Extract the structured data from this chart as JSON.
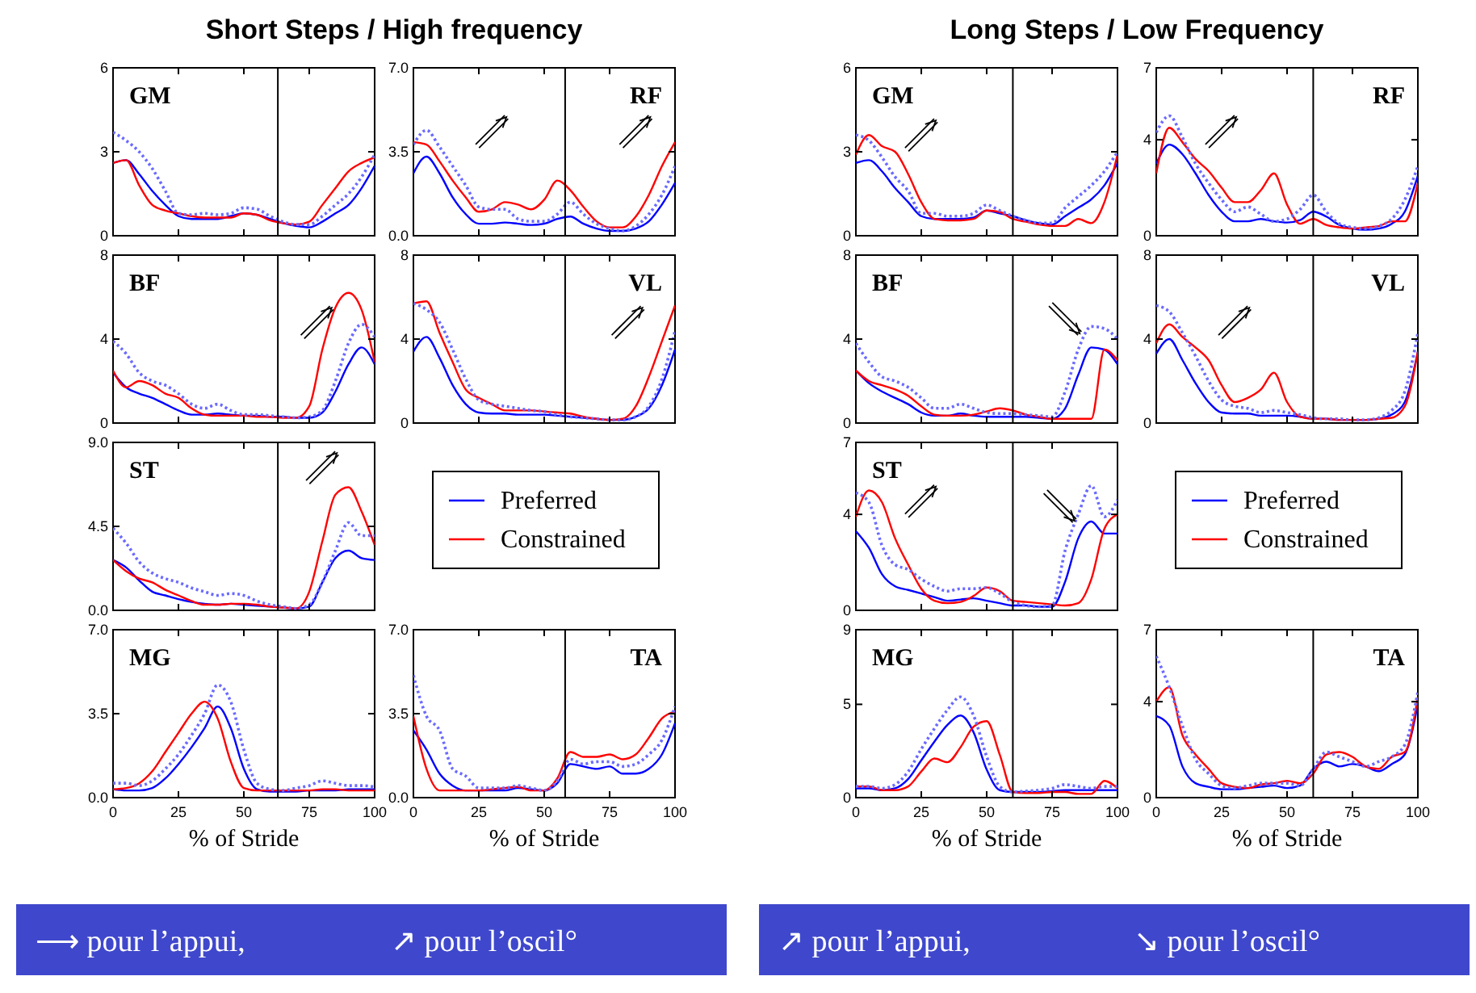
{
  "chart_data": [
    {
      "type": "line",
      "title": "GM",
      "annotations": [
        "Short Steps / High frequency"
      ],
      "x": [
        0,
        5,
        10,
        15,
        20,
        25,
        30,
        35,
        40,
        45,
        50,
        55,
        60,
        65,
        70,
        75,
        80,
        85,
        90,
        95,
        100
      ],
      "xlim": [
        0,
        100
      ],
      "ylim": [
        0,
        6
      ],
      "xticks": [
        {
          "value": 0,
          "label": null
        },
        {
          "value": 25,
          "label": null
        },
        {
          "value": 50,
          "label": null
        },
        {
          "value": 75,
          "label": null
        },
        {
          "value": 100,
          "label": null
        }
      ],
      "yticks": [
        0,
        3,
        6
      ],
      "tick_labels": "y",
      "ref_lines": [
        {
          "axis": "x",
          "value": 63
        }
      ],
      "series": [
        {
          "color": "#0000ff",
          "line_style": "solid",
          "values": [
            2.6,
            2.7,
            2.2,
            1.6,
            1.1,
            0.7,
            0.6,
            0.6,
            0.6,
            0.7,
            0.8,
            0.75,
            0.6,
            0.45,
            0.35,
            0.3,
            0.5,
            0.8,
            1.1,
            1.7,
            2.5
          ]
        },
        {
          "color": "#ff0000",
          "line_style": "solid",
          "values": [
            2.6,
            2.7,
            1.8,
            1.1,
            0.9,
            0.8,
            0.7,
            0.65,
            0.65,
            0.65,
            0.8,
            0.75,
            0.55,
            0.45,
            0.4,
            0.5,
            1.1,
            1.7,
            2.3,
            2.6,
            2.8
          ]
        },
        {
          "color": "#6a6aff",
          "line_style": "dotted",
          "values": [
            3.7,
            3.4,
            3.0,
            2.4,
            1.6,
            0.8,
            0.75,
            0.8,
            0.75,
            0.8,
            1.0,
            0.95,
            0.7,
            0.5,
            0.4,
            0.4,
            0.7,
            1.1,
            1.5,
            2.1,
            2.9
          ]
        }
      ]
    },
    {
      "type": "line",
      "title": "RF",
      "x": [
        0,
        5,
        10,
        15,
        20,
        25,
        30,
        35,
        40,
        45,
        50,
        55,
        60,
        65,
        70,
        75,
        80,
        85,
        90,
        95,
        100
      ],
      "xlim": [
        0,
        100
      ],
      "ylim": [
        0,
        7
      ],
      "xticks": [
        {
          "value": 0,
          "label": null
        },
        {
          "value": 25,
          "label": null
        },
        {
          "value": 50,
          "label": null
        },
        {
          "value": 75,
          "label": null
        },
        {
          "value": 100,
          "label": null
        }
      ],
      "yticks": [
        {
          "value": 0,
          "label": "0.0"
        },
        3.5,
        {
          "value": 7,
          "label": "7.0"
        }
      ],
      "tick_labels": "y",
      "ref_lines": [
        {
          "axis": "x",
          "value": 58
        }
      ],
      "series": [
        {
          "color": "#0000ff",
          "line_style": "solid",
          "values": [
            2.6,
            3.3,
            2.6,
            1.6,
            0.9,
            0.5,
            0.5,
            0.55,
            0.5,
            0.45,
            0.5,
            0.7,
            0.8,
            0.5,
            0.3,
            0.2,
            0.2,
            0.3,
            0.6,
            1.3,
            2.2
          ]
        },
        {
          "color": "#ff0000",
          "line_style": "solid",
          "values": [
            3.9,
            3.8,
            3.1,
            2.3,
            1.6,
            1.0,
            1.1,
            1.4,
            1.3,
            1.1,
            1.5,
            2.3,
            1.9,
            1.2,
            0.6,
            0.35,
            0.35,
            0.8,
            1.7,
            2.9,
            3.9
          ]
        },
        {
          "color": "#6a6aff",
          "line_style": "dotted",
          "values": [
            3.8,
            4.4,
            3.7,
            2.9,
            2.1,
            1.2,
            1.1,
            1.1,
            0.7,
            0.6,
            0.6,
            0.9,
            1.4,
            0.9,
            0.5,
            0.3,
            0.2,
            0.4,
            0.9,
            1.7,
            2.9
          ]
        }
      ]
    },
    {
      "type": "line",
      "title": "BF",
      "x": [
        0,
        5,
        10,
        15,
        20,
        25,
        30,
        35,
        40,
        45,
        50,
        55,
        60,
        65,
        70,
        75,
        80,
        85,
        90,
        95,
        100
      ],
      "xlim": [
        0,
        100
      ],
      "ylim": [
        0,
        8
      ],
      "xticks": [
        {
          "value": 0,
          "label": null
        },
        {
          "value": 25,
          "label": null
        },
        {
          "value": 50,
          "label": null
        },
        {
          "value": 75,
          "label": null
        },
        {
          "value": 100,
          "label": null
        }
      ],
      "yticks": [
        0,
        4,
        8
      ],
      "tick_labels": "y",
      "ref_lines": [
        {
          "axis": "x",
          "value": 63
        }
      ],
      "series": [
        {
          "color": "#0000ff",
          "line_style": "solid",
          "values": [
            2.4,
            1.7,
            1.4,
            1.2,
            0.9,
            0.6,
            0.4,
            0.4,
            0.45,
            0.4,
            0.35,
            0.35,
            0.3,
            0.3,
            0.25,
            0.25,
            0.5,
            1.5,
            2.8,
            3.6,
            2.8
          ]
        },
        {
          "color": "#ff0000",
          "line_style": "solid",
          "values": [
            2.5,
            1.7,
            2.0,
            1.8,
            1.4,
            1.2,
            0.7,
            0.4,
            0.35,
            0.35,
            0.35,
            0.3,
            0.3,
            0.25,
            0.25,
            0.8,
            3.5,
            5.5,
            6.2,
            5.4,
            2.9
          ]
        },
        {
          "color": "#6a6aff",
          "line_style": "dotted",
          "values": [
            3.9,
            3.3,
            2.4,
            2.0,
            1.8,
            1.4,
            0.9,
            0.7,
            0.9,
            0.6,
            0.4,
            0.4,
            0.35,
            0.3,
            0.25,
            0.3,
            0.6,
            2.0,
            3.8,
            4.7,
            4.1
          ]
        }
      ]
    },
    {
      "type": "line",
      "title": "VL",
      "x": [
        0,
        5,
        10,
        15,
        20,
        25,
        30,
        35,
        40,
        45,
        50,
        55,
        60,
        65,
        70,
        75,
        80,
        85,
        90,
        95,
        100
      ],
      "xlim": [
        0,
        100
      ],
      "ylim": [
        0,
        8
      ],
      "xticks": [
        {
          "value": 0,
          "label": null
        },
        {
          "value": 25,
          "label": null
        },
        {
          "value": 50,
          "label": null
        },
        {
          "value": 75,
          "label": null
        },
        {
          "value": 100,
          "label": null
        }
      ],
      "yticks": [
        0,
        4,
        8
      ],
      "tick_labels": "y",
      "ref_lines": [
        {
          "axis": "x",
          "value": 58
        }
      ],
      "series": [
        {
          "color": "#0000ff",
          "line_style": "solid",
          "values": [
            3.4,
            4.1,
            3.1,
            1.8,
            0.9,
            0.5,
            0.45,
            0.45,
            0.4,
            0.4,
            0.4,
            0.35,
            0.3,
            0.25,
            0.2,
            0.15,
            0.15,
            0.3,
            0.7,
            1.8,
            3.5
          ]
        },
        {
          "color": "#ff0000",
          "line_style": "solid",
          "values": [
            5.7,
            5.8,
            4.3,
            2.9,
            1.6,
            1.2,
            0.9,
            0.6,
            0.6,
            0.6,
            0.55,
            0.5,
            0.45,
            0.3,
            0.2,
            0.15,
            0.2,
            0.8,
            2.2,
            3.9,
            5.6
          ]
        },
        {
          "color": "#6a6aff",
          "line_style": "dotted",
          "values": [
            5.7,
            5.4,
            4.8,
            3.5,
            2.1,
            1.1,
            0.9,
            0.8,
            0.7,
            0.6,
            0.55,
            0.4,
            0.3,
            0.25,
            0.2,
            0.15,
            0.15,
            0.3,
            0.8,
            2.1,
            4.4
          ]
        }
      ]
    },
    {
      "type": "line",
      "title": "ST",
      "legend": "right",
      "x": [
        0,
        5,
        10,
        15,
        20,
        25,
        30,
        35,
        40,
        45,
        50,
        55,
        60,
        65,
        70,
        75,
        80,
        85,
        90,
        95,
        100
      ],
      "xlim": [
        0,
        100
      ],
      "ylim": [
        0,
        9
      ],
      "xticks": [
        {
          "value": 0,
          "label": null
        },
        {
          "value": 25,
          "label": null
        },
        {
          "value": 50,
          "label": null
        },
        {
          "value": 75,
          "label": null
        },
        {
          "value": 100,
          "label": null
        }
      ],
      "yticks": [
        {
          "value": 0,
          "label": "0.0"
        },
        4.5,
        {
          "value": 9,
          "label": "9.0"
        }
      ],
      "tick_labels": "y",
      "ref_lines": [
        {
          "axis": "x",
          "value": 63
        }
      ],
      "series": [
        {
          "name": "Preferred",
          "color": "#0000ff",
          "line_style": "solid",
          "values": [
            2.7,
            2.3,
            1.6,
            1.0,
            0.8,
            0.6,
            0.45,
            0.35,
            0.3,
            0.35,
            0.3,
            0.25,
            0.2,
            0.15,
            0.1,
            0.2,
            1.5,
            2.8,
            3.2,
            2.8,
            2.7
          ]
        },
        {
          "name": "Constrained",
          "color": "#ff0000",
          "line_style": "solid",
          "values": [
            2.7,
            2.1,
            1.7,
            1.5,
            1.1,
            0.8,
            0.5,
            0.3,
            0.3,
            0.35,
            0.35,
            0.3,
            0.2,
            0.15,
            0.1,
            1.0,
            3.7,
            6.2,
            6.6,
            5.3,
            3.5
          ]
        },
        {
          "color": "#6a6aff",
          "line_style": "dotted",
          "values": [
            4.4,
            3.6,
            2.6,
            2.0,
            1.7,
            1.5,
            1.2,
            1.0,
            0.8,
            0.9,
            0.8,
            0.5,
            0.3,
            0.2,
            0.1,
            0.3,
            1.5,
            3.2,
            4.7,
            4.0,
            4.0
          ]
        }
      ]
    },
    {
      "type": "line",
      "title": "MG",
      "xlabel": "% of Stride",
      "annotations": [
        "⟶ pour l’appui,",
        "↗ pour l’oscil°"
      ],
      "x": [
        0,
        5,
        10,
        15,
        20,
        25,
        30,
        35,
        40,
        45,
        50,
        55,
        60,
        65,
        70,
        75,
        80,
        85,
        90,
        95,
        100
      ],
      "xlim": [
        0,
        100
      ],
      "ylim": [
        0,
        7
      ],
      "xticks": [
        0,
        25,
        50,
        75,
        100
      ],
      "yticks": [
        {
          "value": 0,
          "label": "0.0"
        },
        3.5,
        {
          "value": 7,
          "label": "7.0"
        }
      ],
      "ref_lines": [
        {
          "axis": "x",
          "value": 63
        }
      ],
      "series": [
        {
          "color": "#0000ff",
          "line_style": "solid",
          "values": [
            0.35,
            0.3,
            0.3,
            0.4,
            0.8,
            1.4,
            2.1,
            2.9,
            3.8,
            2.9,
            1.2,
            0.35,
            0.25,
            0.25,
            0.25,
            0.3,
            0.3,
            0.3,
            0.35,
            0.35,
            0.35
          ]
        },
        {
          "color": "#ff0000",
          "line_style": "solid",
          "values": [
            0.35,
            0.4,
            0.6,
            1.1,
            1.9,
            2.7,
            3.5,
            4.0,
            3.3,
            1.5,
            0.4,
            0.3,
            0.3,
            0.3,
            0.3,
            0.3,
            0.35,
            0.35,
            0.3,
            0.3,
            0.3
          ]
        },
        {
          "color": "#6a6aff",
          "line_style": "dotted",
          "values": [
            0.6,
            0.6,
            0.5,
            0.7,
            1.2,
            1.8,
            2.6,
            3.5,
            4.7,
            4.0,
            2.0,
            0.6,
            0.35,
            0.3,
            0.4,
            0.5,
            0.7,
            0.6,
            0.5,
            0.5,
            0.45
          ]
        }
      ]
    },
    {
      "type": "line",
      "title": "TA",
      "xlabel": "% of Stride",
      "x": [
        0,
        5,
        10,
        15,
        20,
        25,
        30,
        35,
        40,
        45,
        50,
        55,
        60,
        65,
        70,
        75,
        80,
        85,
        90,
        95,
        100
      ],
      "xlim": [
        0,
        100
      ],
      "ylim": [
        0,
        7
      ],
      "xticks": [
        0,
        25,
        50,
        75,
        100
      ],
      "yticks": [
        {
          "value": 0,
          "label": "0.0"
        },
        3.5,
        {
          "value": 7,
          "label": "7.0"
        }
      ],
      "ref_lines": [
        {
          "axis": "x",
          "value": 58
        }
      ],
      "series": [
        {
          "color": "#0000ff",
          "line_style": "solid",
          "values": [
            2.8,
            2.0,
            1.0,
            0.5,
            0.3,
            0.3,
            0.3,
            0.3,
            0.4,
            0.35,
            0.3,
            0.6,
            1.4,
            1.3,
            1.2,
            1.3,
            1.0,
            1.0,
            1.2,
            1.8,
            3.1
          ]
        },
        {
          "color": "#ff0000",
          "line_style": "solid",
          "values": [
            3.4,
            1.2,
            0.3,
            0.3,
            0.3,
            0.3,
            0.35,
            0.4,
            0.45,
            0.3,
            0.3,
            0.8,
            1.9,
            1.7,
            1.7,
            1.8,
            1.6,
            1.8,
            2.5,
            3.3,
            3.6
          ]
        },
        {
          "color": "#6a6aff",
          "line_style": "dotted",
          "values": [
            5.1,
            3.4,
            2.8,
            1.2,
            0.9,
            0.4,
            0.4,
            0.4,
            0.5,
            0.4,
            0.3,
            0.7,
            1.6,
            1.4,
            1.5,
            1.5,
            1.3,
            1.4,
            1.8,
            2.4,
            3.8
          ]
        }
      ]
    },
    {
      "type": "line",
      "title": "GM",
      "annotations": [
        "Long Steps / Low Frequency"
      ],
      "x": [
        0,
        5,
        10,
        15,
        20,
        25,
        30,
        35,
        40,
        45,
        50,
        55,
        60,
        65,
        70,
        75,
        80,
        85,
        90,
        95,
        100
      ],
      "xlim": [
        0,
        100
      ],
      "ylim": [
        0,
        6
      ],
      "xticks": [
        {
          "value": 0,
          "label": null
        },
        {
          "value": 25,
          "label": null
        },
        {
          "value": 50,
          "label": null
        },
        {
          "value": 75,
          "label": null
        },
        {
          "value": 100,
          "label": null
        }
      ],
      "yticks": [
        0,
        3,
        6
      ],
      "tick_labels": "y",
      "ref_lines": [
        {
          "axis": "x",
          "value": 60
        }
      ],
      "series": [
        {
          "color": "#0000ff",
          "line_style": "solid",
          "values": [
            2.6,
            2.7,
            2.3,
            1.7,
            1.2,
            0.7,
            0.6,
            0.6,
            0.6,
            0.65,
            0.9,
            0.8,
            0.7,
            0.55,
            0.45,
            0.4,
            0.7,
            1.0,
            1.3,
            1.8,
            2.6
          ]
        },
        {
          "color": "#ff0000",
          "line_style": "solid",
          "values": [
            2.9,
            3.6,
            3.2,
            3.0,
            2.2,
            1.2,
            0.6,
            0.55,
            0.55,
            0.6,
            0.9,
            0.85,
            0.6,
            0.5,
            0.4,
            0.35,
            0.35,
            0.6,
            0.45,
            1.2,
            2.9
          ]
        },
        {
          "color": "#6a6aff",
          "line_style": "dotted",
          "values": [
            3.6,
            3.4,
            2.8,
            2.1,
            1.6,
            0.8,
            0.8,
            0.7,
            0.7,
            0.8,
            1.1,
            0.9,
            0.7,
            0.55,
            0.45,
            0.45,
            1.0,
            1.4,
            1.8,
            2.3,
            3.0
          ]
        }
      ]
    },
    {
      "type": "line",
      "title": "RF",
      "x": [
        0,
        5,
        10,
        15,
        20,
        25,
        30,
        35,
        40,
        45,
        50,
        55,
        60,
        65,
        70,
        75,
        80,
        85,
        90,
        95,
        100
      ],
      "xlim": [
        0,
        100
      ],
      "ylim": [
        0,
        7
      ],
      "xticks": [
        {
          "value": 0,
          "label": null
        },
        {
          "value": 25,
          "label": null
        },
        {
          "value": 50,
          "label": null
        },
        {
          "value": 75,
          "label": null
        },
        {
          "value": 100,
          "label": null
        }
      ],
      "yticks": [
        0,
        4,
        7
      ],
      "tick_labels": "y",
      "ref_lines": [
        {
          "axis": "x",
          "value": 60
        }
      ],
      "series": [
        {
          "color": "#0000ff",
          "line_style": "solid",
          "values": [
            3.0,
            3.8,
            3.4,
            2.6,
            1.7,
            1.0,
            0.6,
            0.6,
            0.7,
            0.6,
            0.55,
            0.65,
            1.0,
            0.8,
            0.45,
            0.3,
            0.25,
            0.3,
            0.5,
            1.0,
            2.5
          ]
        },
        {
          "color": "#ff0000",
          "line_style": "solid",
          "values": [
            2.6,
            4.5,
            3.9,
            3.2,
            2.7,
            2.0,
            1.4,
            1.4,
            1.9,
            2.6,
            1.3,
            0.5,
            0.7,
            0.45,
            0.35,
            0.3,
            0.35,
            0.4,
            0.6,
            0.6,
            2.2
          ]
        },
        {
          "color": "#6a6aff",
          "line_style": "dotted",
          "values": [
            4.3,
            5.0,
            4.1,
            3.0,
            2.2,
            1.5,
            1.0,
            1.2,
            0.9,
            0.6,
            0.7,
            1.1,
            1.7,
            1.0,
            0.5,
            0.35,
            0.3,
            0.4,
            0.7,
            1.5,
            2.9
          ]
        }
      ]
    },
    {
      "type": "line",
      "title": "BF",
      "x": [
        0,
        5,
        10,
        15,
        20,
        25,
        30,
        35,
        40,
        45,
        50,
        55,
        60,
        65,
        70,
        75,
        80,
        85,
        90,
        95,
        100
      ],
      "xlim": [
        0,
        100
      ],
      "ylim": [
        0,
        8
      ],
      "xticks": [
        {
          "value": 0,
          "label": null
        },
        {
          "value": 25,
          "label": null
        },
        {
          "value": 50,
          "label": null
        },
        {
          "value": 75,
          "label": null
        },
        {
          "value": 100,
          "label": null
        }
      ],
      "yticks": [
        0,
        4,
        8
      ],
      "tick_labels": "y",
      "ref_lines": [
        {
          "axis": "x",
          "value": 60
        }
      ],
      "series": [
        {
          "color": "#0000ff",
          "line_style": "solid",
          "values": [
            2.5,
            1.9,
            1.5,
            1.2,
            0.9,
            0.5,
            0.35,
            0.35,
            0.45,
            0.35,
            0.3,
            0.3,
            0.3,
            0.3,
            0.25,
            0.2,
            0.7,
            2.3,
            3.6,
            3.5,
            2.8
          ]
        },
        {
          "color": "#ff0000",
          "line_style": "solid",
          "values": [
            2.5,
            2.0,
            1.8,
            1.6,
            1.3,
            0.8,
            0.4,
            0.35,
            0.35,
            0.4,
            0.55,
            0.7,
            0.6,
            0.4,
            0.3,
            0.2,
            0.2,
            0.2,
            0.2,
            3.5,
            3.0
          ]
        },
        {
          "color": "#6a6aff",
          "line_style": "dotted",
          "values": [
            3.8,
            2.9,
            2.2,
            2.0,
            1.7,
            1.2,
            0.7,
            0.7,
            0.9,
            0.7,
            0.5,
            0.45,
            0.45,
            0.4,
            0.35,
            0.3,
            1.5,
            3.5,
            4.6,
            4.5,
            4.0
          ]
        }
      ]
    },
    {
      "type": "line",
      "title": "VL",
      "x": [
        0,
        5,
        10,
        15,
        20,
        25,
        30,
        35,
        40,
        45,
        50,
        55,
        60,
        65,
        70,
        75,
        80,
        85,
        90,
        95,
        100
      ],
      "xlim": [
        0,
        100
      ],
      "ylim": [
        0,
        8
      ],
      "xticks": [
        {
          "value": 0,
          "label": null
        },
        {
          "value": 25,
          "label": null
        },
        {
          "value": 50,
          "label": null
        },
        {
          "value": 75,
          "label": null
        },
        {
          "value": 100,
          "label": null
        }
      ],
      "yticks": [
        0,
        4,
        8
      ],
      "tick_labels": "y",
      "ref_lines": [
        {
          "axis": "x",
          "value": 60
        }
      ],
      "series": [
        {
          "color": "#0000ff",
          "line_style": "solid",
          "values": [
            3.3,
            4.0,
            3.0,
            1.9,
            1.0,
            0.5,
            0.45,
            0.45,
            0.35,
            0.35,
            0.35,
            0.3,
            0.2,
            0.2,
            0.15,
            0.15,
            0.15,
            0.2,
            0.4,
            1.0,
            3.4
          ]
        },
        {
          "color": "#ff0000",
          "line_style": "solid",
          "values": [
            3.8,
            4.7,
            4.1,
            3.6,
            3.0,
            1.8,
            1.0,
            1.2,
            1.6,
            2.4,
            1.0,
            0.3,
            0.2,
            0.2,
            0.15,
            0.15,
            0.15,
            0.2,
            0.25,
            0.8,
            3.4
          ]
        },
        {
          "color": "#6a6aff",
          "line_style": "dotted",
          "values": [
            5.6,
            5.3,
            4.3,
            3.2,
            2.0,
            1.1,
            0.8,
            0.7,
            0.5,
            0.6,
            0.5,
            0.4,
            0.25,
            0.2,
            0.2,
            0.15,
            0.15,
            0.25,
            0.6,
            1.5,
            4.3
          ]
        }
      ]
    },
    {
      "type": "line",
      "title": "ST",
      "legend": "right",
      "x": [
        0,
        5,
        10,
        15,
        20,
        25,
        30,
        35,
        40,
        45,
        50,
        55,
        60,
        65,
        70,
        75,
        80,
        85,
        90,
        95,
        100
      ],
      "xlim": [
        0,
        100
      ],
      "ylim": [
        0,
        7
      ],
      "xticks": [
        {
          "value": 0,
          "label": null
        },
        {
          "value": 25,
          "label": null
        },
        {
          "value": 50,
          "label": null
        },
        {
          "value": 75,
          "label": null
        },
        {
          "value": 100,
          "label": null
        }
      ],
      "yticks": [
        0,
        4,
        7
      ],
      "tick_labels": "y",
      "ref_lines": [
        {
          "axis": "x",
          "value": 60
        }
      ],
      "series": [
        {
          "name": "Preferred",
          "color": "#0000ff",
          "line_style": "solid",
          "values": [
            3.3,
            2.6,
            1.5,
            1.0,
            0.85,
            0.7,
            0.55,
            0.4,
            0.45,
            0.5,
            0.4,
            0.3,
            0.2,
            0.2,
            0.15,
            0.15,
            1.2,
            3.0,
            3.7,
            3.2,
            3.2
          ]
        },
        {
          "name": "Constrained",
          "color": "#ff0000",
          "line_style": "solid",
          "values": [
            3.9,
            5.0,
            4.5,
            3.0,
            1.9,
            0.9,
            0.4,
            0.3,
            0.35,
            0.6,
            0.95,
            0.8,
            0.4,
            0.35,
            0.3,
            0.25,
            0.2,
            0.3,
            1.3,
            3.4,
            4.0
          ]
        },
        {
          "color": "#6a6aff",
          "line_style": "dotted",
          "values": [
            4.9,
            4.5,
            2.7,
            1.9,
            1.7,
            1.3,
            1.0,
            0.8,
            0.9,
            0.9,
            0.95,
            0.7,
            0.35,
            0.2,
            0.15,
            0.2,
            2.5,
            4.0,
            5.2,
            3.9,
            4.6
          ]
        }
      ]
    },
    {
      "type": "line",
      "title": "MG",
      "xlabel": "% of Stride",
      "annotations": [
        "↗ pour l’appui,",
        "↘ pour l’oscil°"
      ],
      "x": [
        0,
        5,
        10,
        15,
        20,
        25,
        30,
        35,
        40,
        45,
        50,
        55,
        60,
        65,
        70,
        75,
        80,
        85,
        90,
        95,
        100
      ],
      "xlim": [
        0,
        100
      ],
      "ylim": [
        0,
        9
      ],
      "xticks": [
        0,
        25,
        50,
        75,
        100
      ],
      "yticks": [
        0,
        5,
        9
      ],
      "ref_lines": [
        {
          "axis": "x",
          "value": 60
        }
      ],
      "series": [
        {
          "color": "#0000ff",
          "line_style": "solid",
          "values": [
            0.5,
            0.5,
            0.4,
            0.5,
            1.0,
            2.0,
            3.0,
            3.9,
            4.4,
            3.5,
            1.5,
            0.4,
            0.3,
            0.3,
            0.3,
            0.35,
            0.4,
            0.4,
            0.4,
            0.4,
            0.4
          ]
        },
        {
          "color": "#ff0000",
          "line_style": "solid",
          "values": [
            0.6,
            0.6,
            0.4,
            0.4,
            0.6,
            1.4,
            2.1,
            1.9,
            2.7,
            3.8,
            4.1,
            2.3,
            0.3,
            0.25,
            0.25,
            0.3,
            0.3,
            0.2,
            0.2,
            0.9,
            0.5
          ]
        },
        {
          "color": "#6a6aff",
          "line_style": "dotted",
          "values": [
            0.6,
            0.6,
            0.5,
            0.7,
            1.4,
            2.6,
            3.7,
            4.7,
            5.4,
            4.4,
            2.2,
            0.6,
            0.3,
            0.35,
            0.4,
            0.5,
            0.7,
            0.6,
            0.5,
            0.6,
            0.6
          ]
        }
      ]
    },
    {
      "type": "line",
      "title": "TA",
      "xlabel": "% of Stride",
      "x": [
        0,
        5,
        10,
        15,
        20,
        25,
        30,
        35,
        40,
        45,
        50,
        55,
        60,
        65,
        70,
        75,
        80,
        85,
        90,
        95,
        100
      ],
      "xlim": [
        0,
        100
      ],
      "ylim": [
        0,
        7
      ],
      "xticks": [
        0,
        25,
        50,
        75,
        100
      ],
      "yticks": [
        0,
        4,
        7
      ],
      "ref_lines": [
        {
          "axis": "x",
          "value": 60
        }
      ],
      "series": [
        {
          "color": "#0000ff",
          "line_style": "solid",
          "values": [
            3.4,
            3.0,
            1.3,
            0.6,
            0.45,
            0.35,
            0.35,
            0.4,
            0.45,
            0.5,
            0.4,
            0.5,
            1.2,
            1.5,
            1.3,
            1.4,
            1.3,
            1.1,
            1.4,
            1.8,
            3.9
          ]
        },
        {
          "color": "#ff0000",
          "line_style": "solid",
          "values": [
            4.0,
            4.6,
            2.6,
            1.8,
            1.2,
            0.6,
            0.45,
            0.4,
            0.55,
            0.6,
            0.7,
            0.6,
            1.0,
            1.8,
            1.9,
            1.7,
            1.3,
            1.2,
            1.7,
            1.9,
            4.2
          ]
        },
        {
          "color": "#6a6aff",
          "line_style": "dotted",
          "values": [
            5.9,
            4.6,
            3.0,
            1.6,
            1.0,
            0.5,
            0.4,
            0.5,
            0.6,
            0.6,
            0.6,
            0.5,
            1.2,
            1.9,
            1.7,
            1.5,
            1.3,
            1.5,
            1.7,
            2.2,
            4.4
          ]
        }
      ]
    }
  ]
}
